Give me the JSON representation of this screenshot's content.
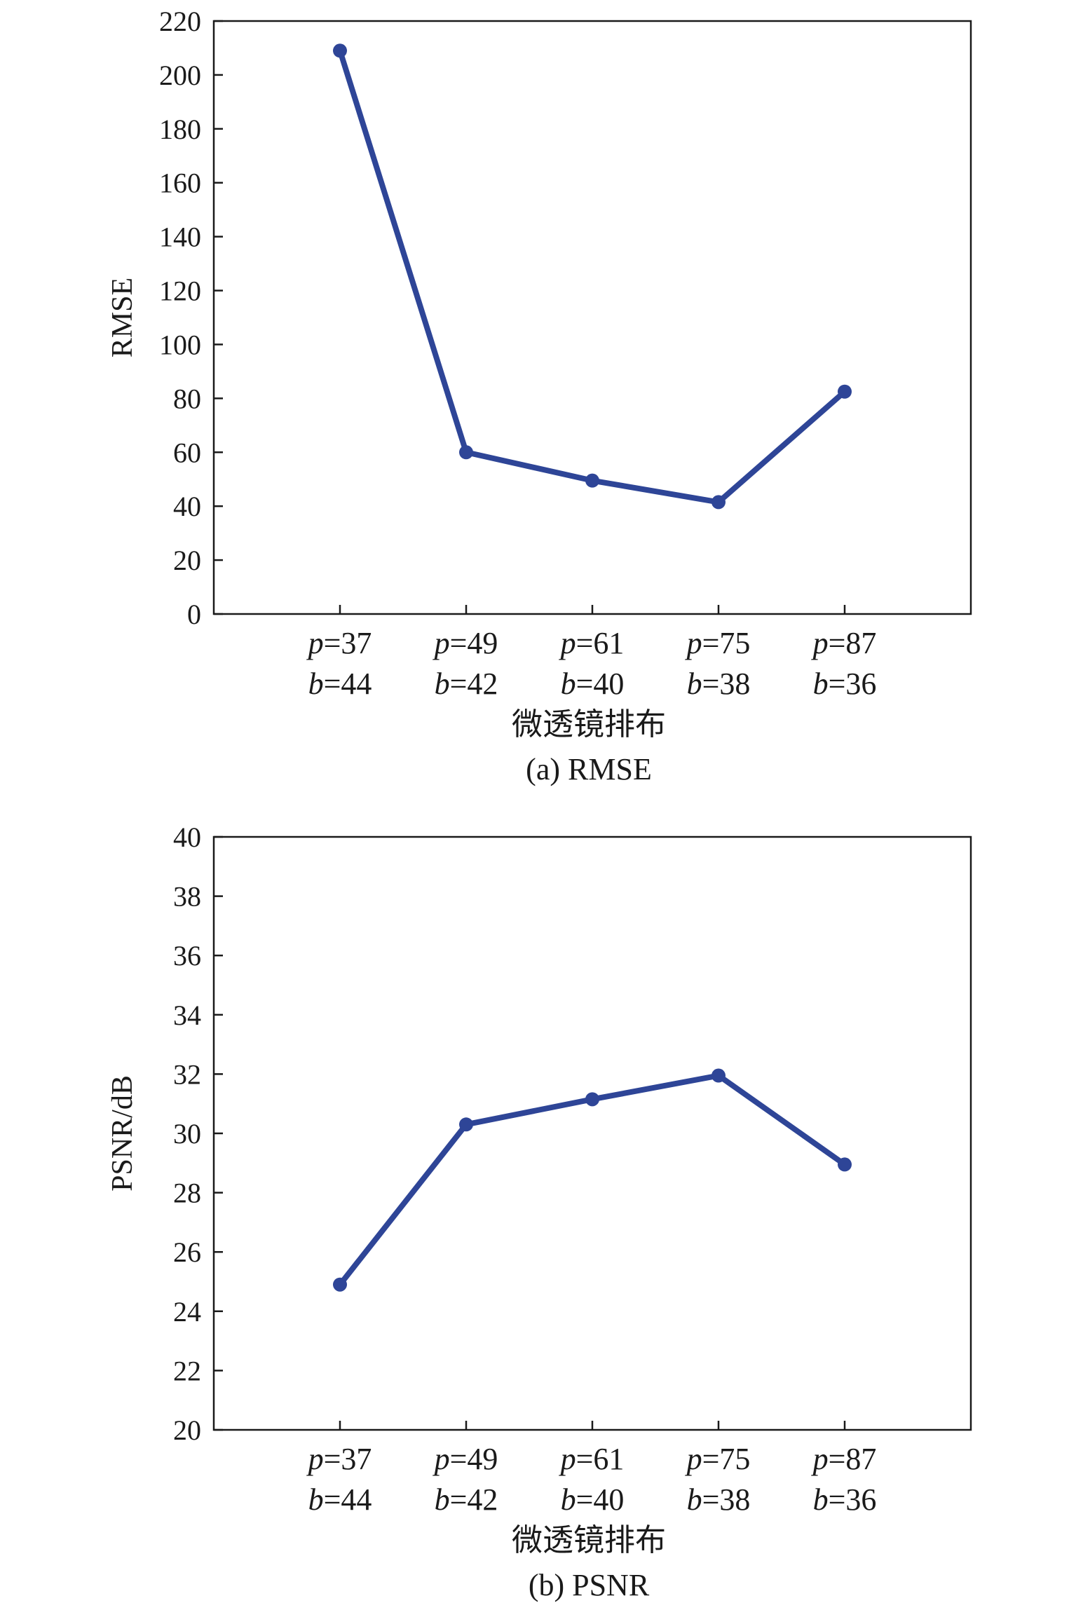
{
  "chart_data": [
    {
      "type": "line",
      "caption": "(a) RMSE",
      "xlabel": "微透镜排布",
      "ylabel": "RMSE",
      "ylim": [
        0,
        220
      ],
      "yticks": [
        "0",
        "20",
        "40",
        "60",
        "80",
        "100",
        "120",
        "140",
        "160",
        "180",
        "200",
        "220"
      ],
      "categories": [
        {
          "p": "=37",
          "b": "=44"
        },
        {
          "p": "=49",
          "b": "=42"
        },
        {
          "p": "=61",
          "b": "=40"
        },
        {
          "p": "=75",
          "b": "=38"
        },
        {
          "p": "=87",
          "b": "=36"
        }
      ],
      "series": [
        {
          "values": [
            209,
            60,
            49.5,
            41.5,
            82.5
          ],
          "color": "#2e4597"
        }
      ]
    },
    {
      "type": "line",
      "caption": "(b) PSNR",
      "xlabel": "微透镜排布",
      "ylabel": "PSNR/dB",
      "ylim": [
        20,
        40
      ],
      "yticks": [
        "20",
        "22",
        "24",
        "26",
        "28",
        "30",
        "32",
        "34",
        "36",
        "38",
        "40"
      ],
      "categories": [
        {
          "p": "=37",
          "b": "=44"
        },
        {
          "p": "=49",
          "b": "=42"
        },
        {
          "p": "=61",
          "b": "=40"
        },
        {
          "p": "=75",
          "b": "=38"
        },
        {
          "p": "=87",
          "b": "=36"
        }
      ],
      "series": [
        {
          "values": [
            24.9,
            30.3,
            31.15,
            31.95,
            28.95
          ],
          "color": "#2e4597"
        }
      ]
    }
  ],
  "cat_letters": {
    "p": "p",
    "b": "b"
  }
}
